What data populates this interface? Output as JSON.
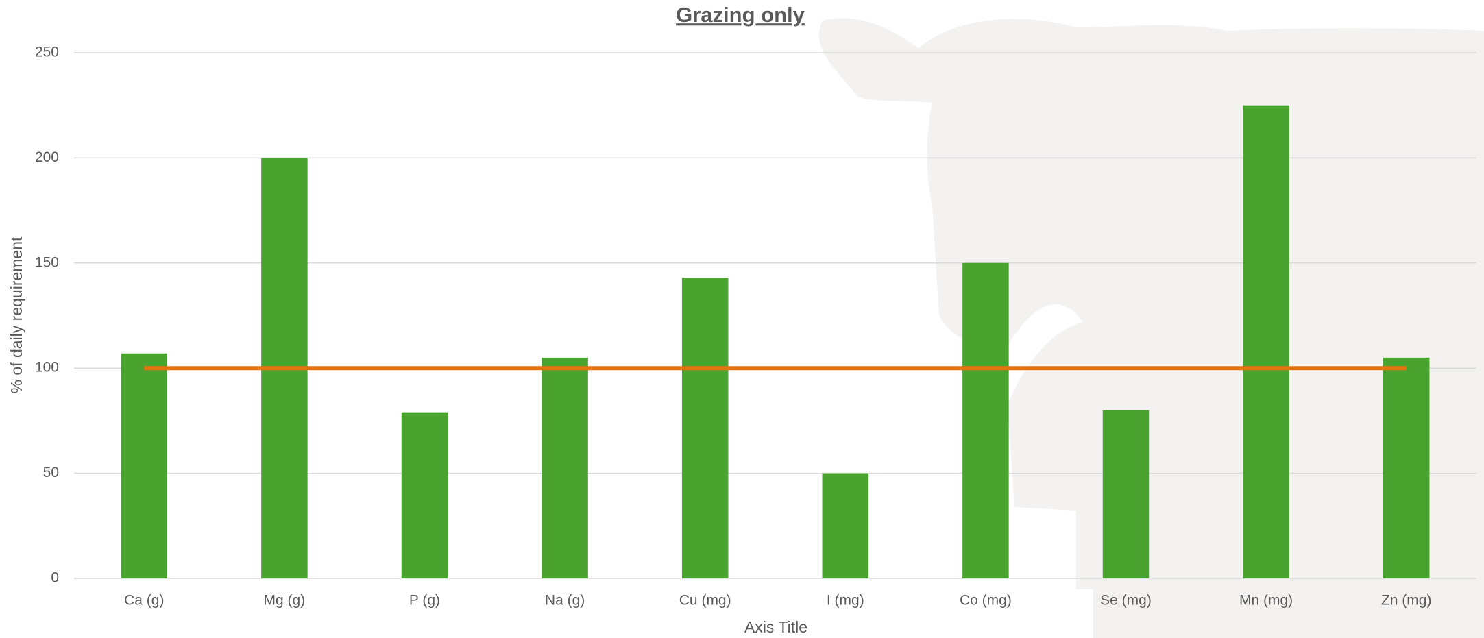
{
  "chart_data": {
    "type": "bar",
    "title": "Grazing only",
    "x_label": "Axis Title",
    "y_label": "% of daily requirement",
    "categories": [
      "Ca (g)",
      "Mg (g)",
      "P (g)",
      "Na (g)",
      "Cu (mg)",
      "I (mg)",
      "Co (mg)",
      "Se (mg)",
      "Mn (mg)",
      "Zn (mg)"
    ],
    "series": [
      {
        "type": "bar",
        "color": "#4aa22f",
        "values": [
          107,
          200,
          79,
          105,
          143,
          50,
          150,
          80,
          225,
          105
        ]
      },
      {
        "type": "line",
        "color": "#e8720c",
        "values": [
          100,
          100,
          100,
          100,
          100,
          100,
          100,
          100,
          100,
          100
        ]
      }
    ],
    "ylim": [
      0,
      250
    ],
    "yticks": [
      0,
      50,
      100,
      150,
      200,
      250
    ],
    "grid": true
  }
}
